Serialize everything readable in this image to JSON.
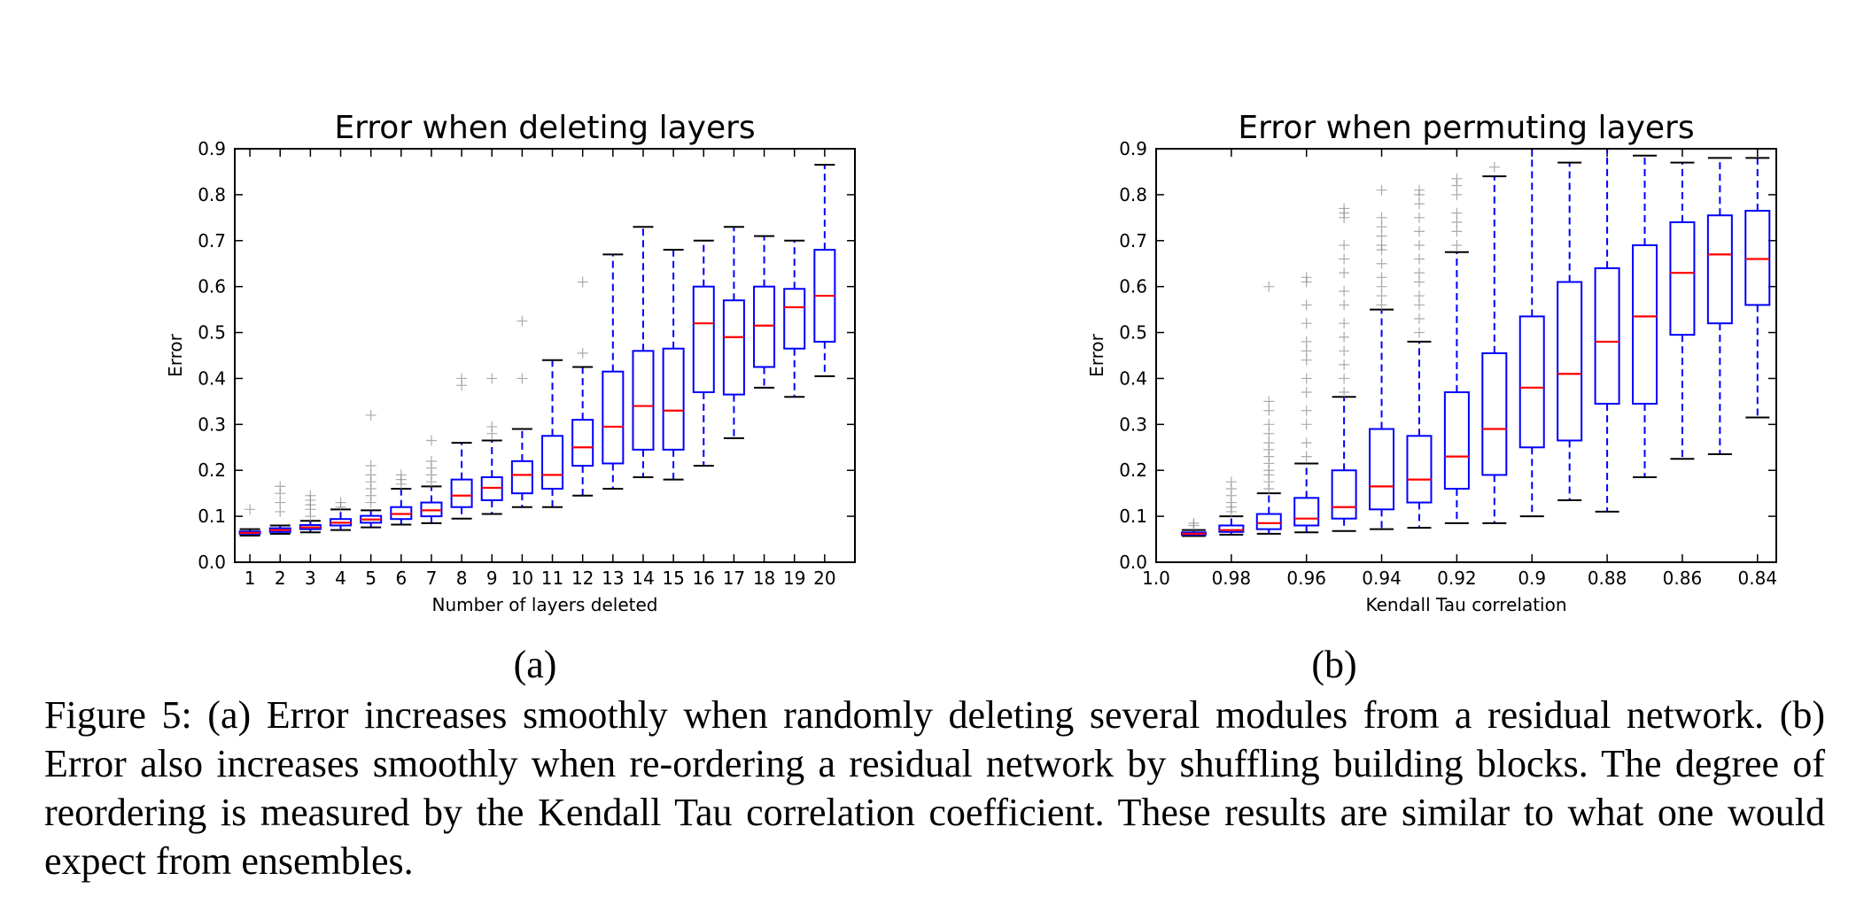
{
  "chart_data": [
    {
      "type": "box",
      "title": "Error when deleting layers",
      "xlabel": "Number of layers deleted",
      "ylabel": "Error",
      "ylim": [
        0,
        0.9
      ],
      "yticks": [
        "0.0",
        "0.1",
        "0.2",
        "0.3",
        "0.4",
        "0.5",
        "0.6",
        "0.7",
        "0.8",
        "0.9"
      ],
      "categories": [
        "1",
        "2",
        "3",
        "4",
        "5",
        "6",
        "7",
        "8",
        "9",
        "10",
        "11",
        "12",
        "13",
        "14",
        "15",
        "16",
        "17",
        "18",
        "19",
        "20"
      ],
      "boxes": [
        {
          "whislo": 0.058,
          "q1": 0.062,
          "med": 0.064,
          "q3": 0.067,
          "whishi": 0.072,
          "fliers": [
            0.115
          ]
        },
        {
          "whislo": 0.062,
          "q1": 0.066,
          "med": 0.07,
          "q3": 0.074,
          "whishi": 0.08,
          "fliers": [
            0.11,
            0.13,
            0.15,
            0.165
          ]
        },
        {
          "whislo": 0.065,
          "q1": 0.072,
          "med": 0.076,
          "q3": 0.081,
          "whishi": 0.09,
          "fliers": [
            0.1,
            0.115,
            0.125,
            0.135,
            0.145
          ]
        },
        {
          "whislo": 0.07,
          "q1": 0.08,
          "med": 0.086,
          "q3": 0.094,
          "whishi": 0.115,
          "fliers": [
            0.12,
            0.13
          ]
        },
        {
          "whislo": 0.076,
          "q1": 0.086,
          "med": 0.093,
          "q3": 0.101,
          "whishi": 0.113,
          "fliers": [
            0.13,
            0.145,
            0.16,
            0.175,
            0.19,
            0.21,
            0.32
          ]
        },
        {
          "whislo": 0.082,
          "q1": 0.094,
          "med": 0.105,
          "q3": 0.12,
          "whishi": 0.16,
          "fliers": [
            0.17,
            0.18,
            0.19
          ]
        },
        {
          "whislo": 0.085,
          "q1": 0.1,
          "med": 0.113,
          "q3": 0.13,
          "whishi": 0.165,
          "fliers": [
            0.175,
            0.19,
            0.205,
            0.22,
            0.265
          ]
        },
        {
          "whislo": 0.095,
          "q1": 0.12,
          "med": 0.145,
          "q3": 0.18,
          "whishi": 0.26,
          "fliers": [
            0.385,
            0.4
          ]
        },
        {
          "whislo": 0.105,
          "q1": 0.135,
          "med": 0.162,
          "q3": 0.185,
          "whishi": 0.265,
          "fliers": [
            0.28,
            0.295,
            0.4
          ]
        },
        {
          "whislo": 0.12,
          "q1": 0.15,
          "med": 0.19,
          "q3": 0.22,
          "whishi": 0.29,
          "fliers": [
            0.4,
            0.525
          ]
        },
        {
          "whislo": 0.12,
          "q1": 0.16,
          "med": 0.19,
          "q3": 0.275,
          "whishi": 0.44,
          "fliers": []
        },
        {
          "whislo": 0.145,
          "q1": 0.21,
          "med": 0.25,
          "q3": 0.31,
          "whishi": 0.425,
          "fliers": [
            0.455,
            0.61
          ]
        },
        {
          "whislo": 0.16,
          "q1": 0.215,
          "med": 0.295,
          "q3": 0.415,
          "whishi": 0.67,
          "fliers": []
        },
        {
          "whislo": 0.185,
          "q1": 0.245,
          "med": 0.34,
          "q3": 0.46,
          "whishi": 0.73,
          "fliers": []
        },
        {
          "whislo": 0.18,
          "q1": 0.245,
          "med": 0.33,
          "q3": 0.465,
          "whishi": 0.68,
          "fliers": []
        },
        {
          "whislo": 0.21,
          "q1": 0.37,
          "med": 0.52,
          "q3": 0.6,
          "whishi": 0.7,
          "fliers": []
        },
        {
          "whislo": 0.27,
          "q1": 0.365,
          "med": 0.49,
          "q3": 0.57,
          "whishi": 0.73,
          "fliers": []
        },
        {
          "whislo": 0.38,
          "q1": 0.425,
          "med": 0.515,
          "q3": 0.6,
          "whishi": 0.71,
          "fliers": []
        },
        {
          "whislo": 0.36,
          "q1": 0.465,
          "med": 0.555,
          "q3": 0.595,
          "whishi": 0.7,
          "fliers": []
        },
        {
          "whislo": 0.405,
          "q1": 0.48,
          "med": 0.58,
          "q3": 0.68,
          "whishi": 0.865,
          "fliers": []
        }
      ],
      "colors": {
        "box": "#0000ff",
        "median": "#ff0000",
        "flier": "#888888",
        "cap": "#000000"
      }
    },
    {
      "type": "box",
      "title": "Error when permuting layers",
      "xlabel": "Kendall Tau correlation",
      "ylabel": "Error",
      "ylim": [
        0,
        0.9
      ],
      "yticks": [
        "0.0",
        "0.1",
        "0.2",
        "0.3",
        "0.4",
        "0.5",
        "0.6",
        "0.7",
        "0.8",
        "0.9"
      ],
      "xlim": [
        1.0,
        0.835
      ],
      "xticks": [
        "1.0",
        "0.98",
        "0.96",
        "0.94",
        "0.92",
        "0.9",
        "0.88",
        "0.86",
        "0.84"
      ],
      "x": [
        0.99,
        0.98,
        0.97,
        0.96,
        0.95,
        0.94,
        0.93,
        0.92,
        0.91,
        0.9,
        0.89,
        0.88,
        0.87,
        0.86,
        0.85,
        0.84
      ],
      "boxes": [
        {
          "whislo": 0.057,
          "q1": 0.06,
          "med": 0.062,
          "q3": 0.065,
          "whishi": 0.07,
          "fliers": [
            0.08,
            0.085
          ]
        },
        {
          "whislo": 0.06,
          "q1": 0.066,
          "med": 0.07,
          "q3": 0.08,
          "whishi": 0.1,
          "fliers": [
            0.11,
            0.12,
            0.13,
            0.145,
            0.16,
            0.175
          ]
        },
        {
          "whislo": 0.062,
          "q1": 0.072,
          "med": 0.085,
          "q3": 0.105,
          "whishi": 0.15,
          "fliers": [
            0.16,
            0.175,
            0.19,
            0.2,
            0.215,
            0.23,
            0.245,
            0.26,
            0.28,
            0.3,
            0.33,
            0.35,
            0.6
          ]
        },
        {
          "whislo": 0.065,
          "q1": 0.08,
          "med": 0.095,
          "q3": 0.14,
          "whishi": 0.215,
          "fliers": [
            0.23,
            0.26,
            0.3,
            0.33,
            0.37,
            0.4,
            0.44,
            0.46,
            0.48,
            0.52,
            0.56,
            0.61,
            0.62
          ]
        },
        {
          "whislo": 0.068,
          "q1": 0.095,
          "med": 0.12,
          "q3": 0.2,
          "whishi": 0.36,
          "fliers": [
            0.37,
            0.4,
            0.43,
            0.46,
            0.49,
            0.52,
            0.56,
            0.59,
            0.63,
            0.66,
            0.69,
            0.75,
            0.76,
            0.77
          ]
        },
        {
          "whislo": 0.072,
          "q1": 0.115,
          "med": 0.165,
          "q3": 0.29,
          "whishi": 0.55,
          "fliers": [
            0.56,
            0.58,
            0.6,
            0.62,
            0.65,
            0.68,
            0.69,
            0.71,
            0.73,
            0.75,
            0.81
          ]
        },
        {
          "whislo": 0.075,
          "q1": 0.13,
          "med": 0.18,
          "q3": 0.275,
          "whishi": 0.48,
          "fliers": [
            0.5,
            0.53,
            0.56,
            0.58,
            0.61,
            0.63,
            0.66,
            0.69,
            0.72,
            0.75,
            0.78,
            0.8,
            0.81
          ]
        },
        {
          "whislo": 0.085,
          "q1": 0.16,
          "med": 0.23,
          "q3": 0.37,
          "whishi": 0.675,
          "fliers": [
            0.69,
            0.72,
            0.74,
            0.76,
            0.8,
            0.82,
            0.835
          ]
        },
        {
          "whislo": 0.085,
          "q1": 0.19,
          "med": 0.29,
          "q3": 0.455,
          "whishi": 0.84,
          "fliers": [
            0.86
          ]
        },
        {
          "whislo": 0.1,
          "q1": 0.25,
          "med": 0.38,
          "q3": 0.535,
          "whishi": 0.9,
          "fliers": []
        },
        {
          "whislo": 0.135,
          "q1": 0.265,
          "med": 0.41,
          "q3": 0.61,
          "whishi": 0.87,
          "fliers": []
        },
        {
          "whislo": 0.11,
          "q1": 0.345,
          "med": 0.48,
          "q3": 0.64,
          "whishi": 0.9,
          "fliers": []
        },
        {
          "whislo": 0.185,
          "q1": 0.345,
          "med": 0.535,
          "q3": 0.69,
          "whishi": 0.885,
          "fliers": []
        },
        {
          "whislo": 0.225,
          "q1": 0.495,
          "med": 0.63,
          "q3": 0.74,
          "whishi": 0.87,
          "fliers": []
        },
        {
          "whislo": 0.235,
          "q1": 0.52,
          "med": 0.67,
          "q3": 0.755,
          "whishi": 0.88,
          "fliers": []
        },
        {
          "whislo": 0.315,
          "q1": 0.56,
          "med": 0.66,
          "q3": 0.765,
          "whishi": 0.88,
          "fliers": []
        }
      ],
      "colors": {
        "box": "#0000ff",
        "median": "#ff0000",
        "flier": "#888888",
        "cap": "#000000"
      }
    }
  ],
  "sublabels": {
    "a": "(a)",
    "b": "(b)"
  },
  "caption": "Figure 5: (a) Error increases smoothly when randomly deleting several modules from a residual network. (b) Error also increases smoothly when re-ordering a residual network by shuffling building blocks. The degree of reordering is measured by the Kendall Tau correlation coefficient. These results are similar to what one would expect from ensembles."
}
